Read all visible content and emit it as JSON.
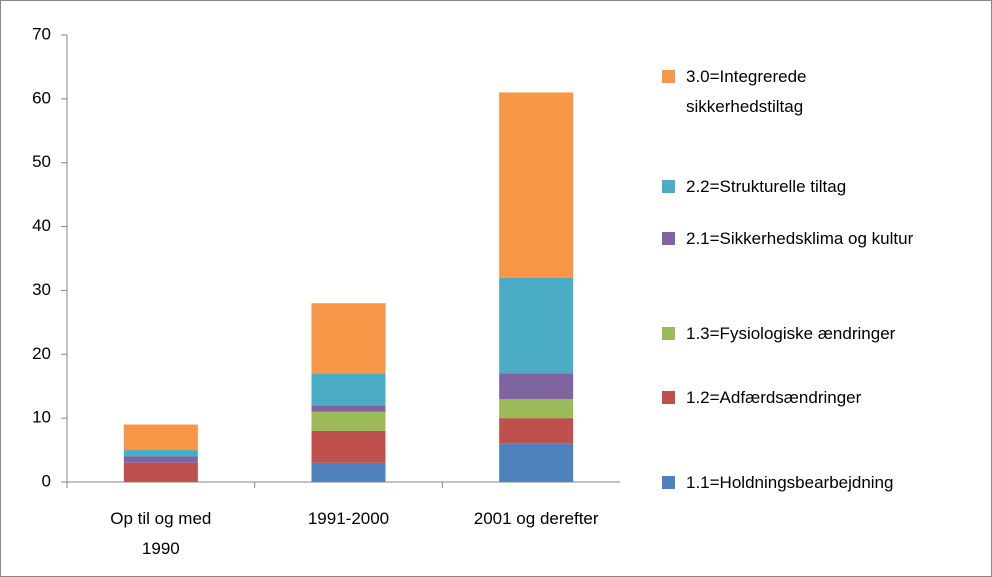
{
  "chart_data": {
    "type": "stacked_bar",
    "categories": [
      "Op til og med 1990",
      "1991-2000",
      "2001 og derefter"
    ],
    "series": [
      {
        "name": "1.1=Holdningsbearbejdning",
        "color": "#4f81bd",
        "values": [
          0,
          3,
          6
        ]
      },
      {
        "name": "1.2=Adfærdsændringer",
        "color": "#c0504d",
        "values": [
          3,
          5,
          4
        ]
      },
      {
        "name": "1.3=Fysiologiske ændringer",
        "color": "#9bbb59",
        "values": [
          0,
          3,
          3
        ]
      },
      {
        "name": "2.1=Sikkerhedsklima og kultur",
        "color": "#8064a2",
        "values": [
          1,
          1,
          4
        ]
      },
      {
        "name": "2.2=Strukturelle tiltag",
        "color": "#4bacc6",
        "values": [
          1,
          5,
          15
        ]
      },
      {
        "name": "3.0=Integrerede sikkerhedstiltag",
        "color": "#f79646",
        "values": [
          4,
          11,
          29
        ]
      }
    ],
    "ylim": [
      0,
      70
    ],
    "yticks": [
      0,
      10,
      20,
      30,
      40,
      50,
      60,
      70
    ],
    "grid": false,
    "legend": "right"
  }
}
